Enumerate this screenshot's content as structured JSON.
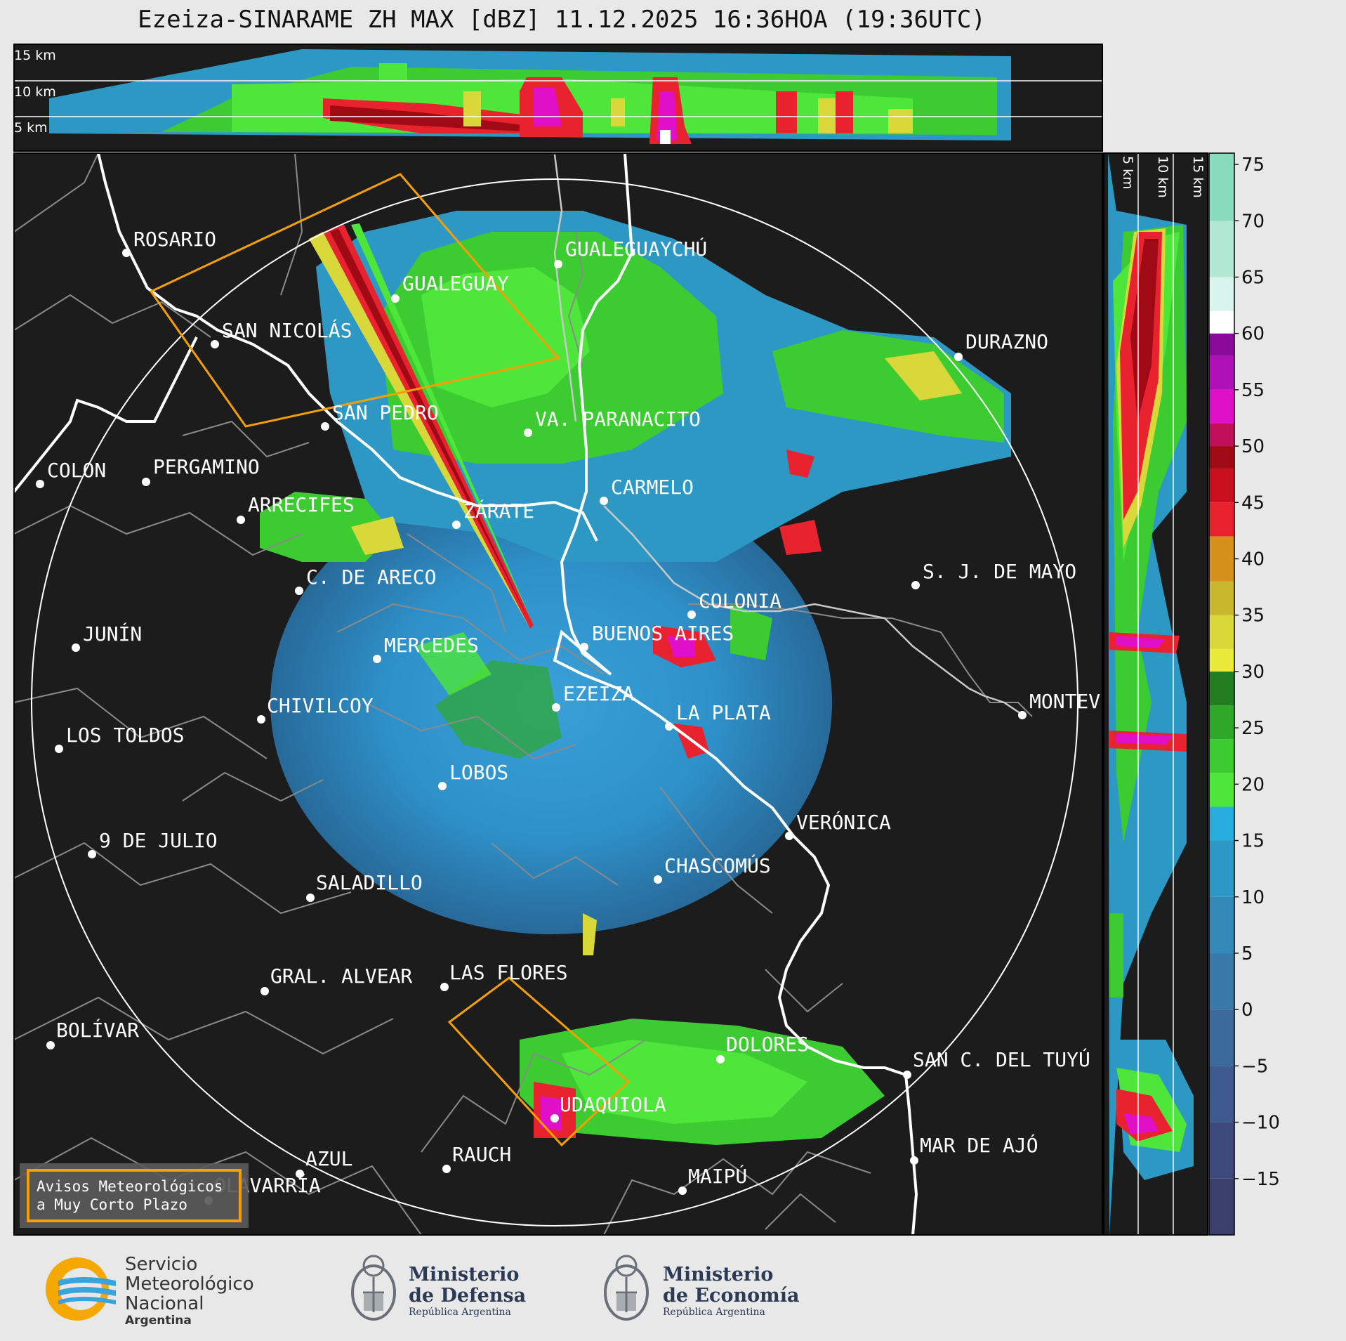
{
  "title": "Ezeiza-SINARAME ZH MAX [dBZ] 11.12.2025 16:36HOA (19:36UTC)",
  "top_profile_labels": [
    "15 km",
    "10 km",
    "5 km"
  ],
  "side_profile_labels": [
    "5 km",
    "10 km",
    "15 km"
  ],
  "colorbar": {
    "ticks": [
      75,
      70,
      65,
      60,
      55,
      50,
      45,
      40,
      35,
      30,
      25,
      20,
      15,
      10,
      5,
      0,
      -5,
      -10,
      -15
    ],
    "tick_labels": [
      "75",
      "70",
      "65",
      "60",
      "55",
      "50",
      "45",
      "40",
      "35",
      "30",
      "25",
      "20",
      "15",
      "10",
      "5",
      "0",
      "−5",
      "−10",
      "−15"
    ],
    "range": [
      -20,
      76
    ],
    "segments": [
      {
        "from": -20,
        "to": -15,
        "color": "#3a3f6b"
      },
      {
        "from": -15,
        "to": -10,
        "color": "#3e4a7c"
      },
      {
        "from": -10,
        "to": -5,
        "color": "#3f5a8e"
      },
      {
        "from": -5,
        "to": 0,
        "color": "#3d6a9c"
      },
      {
        "from": 0,
        "to": 5,
        "color": "#3a7aaa"
      },
      {
        "from": 5,
        "to": 10,
        "color": "#3389b8"
      },
      {
        "from": 10,
        "to": 15,
        "color": "#2e98c4"
      },
      {
        "from": 15,
        "to": 18,
        "color": "#28aede"
      },
      {
        "from": 18,
        "to": 21,
        "color": "#4ee63a"
      },
      {
        "from": 21,
        "to": 24,
        "color": "#3ccc32"
      },
      {
        "from": 24,
        "to": 27,
        "color": "#2fa82a"
      },
      {
        "from": 27,
        "to": 30,
        "color": "#237e22"
      },
      {
        "from": 30,
        "to": 32,
        "color": "#eaea3a"
      },
      {
        "from": 32,
        "to": 35,
        "color": "#d8d83a"
      },
      {
        "from": 35,
        "to": 38,
        "color": "#c9b82e"
      },
      {
        "from": 38,
        "to": 42,
        "color": "#d6901c"
      },
      {
        "from": 42,
        "to": 45,
        "color": "#e8222e"
      },
      {
        "from": 45,
        "to": 48,
        "color": "#c8101e"
      },
      {
        "from": 48,
        "to": 50,
        "color": "#a00a14"
      },
      {
        "from": 50,
        "to": 52,
        "color": "#c0105a"
      },
      {
        "from": 52,
        "to": 55,
        "color": "#e010c8"
      },
      {
        "from": 55,
        "to": 58,
        "color": "#b010b8"
      },
      {
        "from": 58,
        "to": 60,
        "color": "#8a0a9a"
      },
      {
        "from": 60,
        "to": 62,
        "color": "#ffffff"
      },
      {
        "from": 62,
        "to": 65,
        "color": "#d8f4ec"
      },
      {
        "from": 65,
        "to": 70,
        "color": "#b0e8d4"
      },
      {
        "from": 70,
        "to": 76,
        "color": "#88dcbc"
      }
    ]
  },
  "cities": [
    {
      "name": "ROSARIO"
    },
    {
      "name": "GUALEGUAYCHÚ"
    },
    {
      "name": "GUALEGUAY"
    },
    {
      "name": "SAN NICOLÁS"
    },
    {
      "name": "DURAZNO"
    },
    {
      "name": "SAN PEDRO"
    },
    {
      "name": "VA. PARANACITO"
    },
    {
      "name": "COLON"
    },
    {
      "name": "PERGAMINO"
    },
    {
      "name": "CARMELO"
    },
    {
      "name": "ARRECIFES"
    },
    {
      "name": "ZÁRATE"
    },
    {
      "name": "S. J. DE MAYO"
    },
    {
      "name": "C. DE ARECO"
    },
    {
      "name": "COLONIA"
    },
    {
      "name": "JUNÍN"
    },
    {
      "name": "MERCEDES"
    },
    {
      "name": "BUENOS AIRES"
    },
    {
      "name": "MONTEVIDEO"
    },
    {
      "name": "CHIVILCOY"
    },
    {
      "name": "EZEIZA"
    },
    {
      "name": "LA PLATA"
    },
    {
      "name": "LOS TOLDOS"
    },
    {
      "name": "LOBOS"
    },
    {
      "name": "VERÓNICA"
    },
    {
      "name": "9 DE JULIO"
    },
    {
      "name": "CHASCOMÚS"
    },
    {
      "name": "SALADILLO"
    },
    {
      "name": "GRAL. ALVEAR"
    },
    {
      "name": "LAS FLORES"
    },
    {
      "name": "BOLÍVAR"
    },
    {
      "name": "DOLORES"
    },
    {
      "name": "SAN C. DEL TUYÚ"
    },
    {
      "name": "UDAQUIOLA"
    },
    {
      "name": "MAR DE AJÓ"
    },
    {
      "name": "AZUL"
    },
    {
      "name": "RAUCH"
    },
    {
      "name": "OLAVARRÍA"
    },
    {
      "name": "MAIPÚ"
    }
  ],
  "legend": {
    "line1": "Avisos Meteorológicos",
    "line2": "a Muy Corto Plazo",
    "color": "#f5a000"
  },
  "logos": {
    "smn": {
      "line1": "Servicio",
      "line2": "Meteorológico",
      "line3": "Nacional",
      "sub": "Argentina"
    },
    "defensa": {
      "line1": "Ministerio",
      "line2": "de Defensa",
      "sub": "República Argentina"
    },
    "economia": {
      "line1": "Ministerio",
      "line2": "de Economía",
      "sub": "República Argentina"
    }
  }
}
